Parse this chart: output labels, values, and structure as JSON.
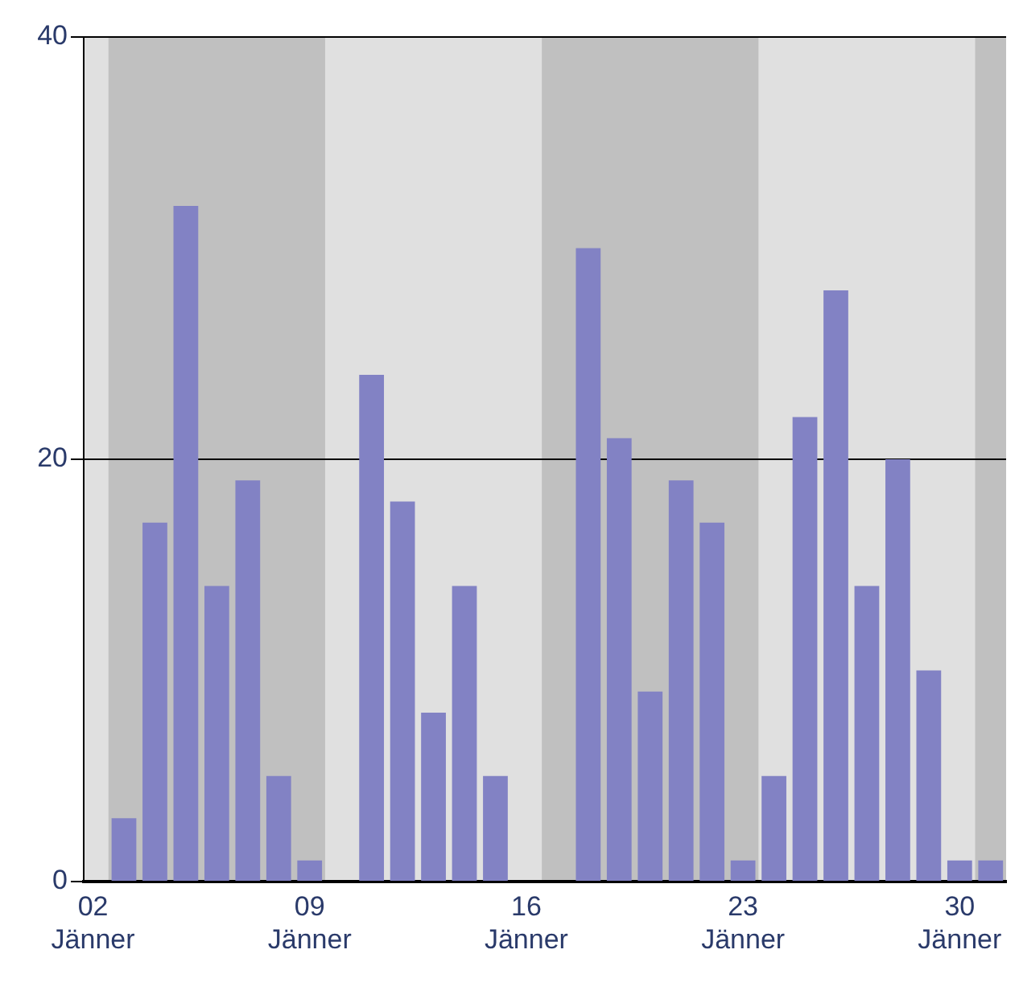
{
  "chart_data": {
    "type": "bar",
    "x": [
      2,
      3,
      4,
      5,
      6,
      7,
      8,
      9,
      10,
      11,
      12,
      13,
      14,
      15,
      16,
      17,
      18,
      19,
      20,
      21,
      22,
      23,
      24,
      25,
      26,
      27,
      28,
      29,
      30,
      31
    ],
    "values": [
      0,
      3,
      17,
      32,
      14,
      19,
      5,
      1,
      0,
      24,
      18,
      8,
      14,
      5,
      0,
      0,
      30,
      21,
      9,
      19,
      17,
      1,
      5,
      22,
      28,
      14,
      20,
      10,
      1,
      1
    ],
    "color": "#8282c4",
    "xlim": [
      1.7,
      31.5
    ],
    "xticks": [
      {
        "value": 2,
        "label": "02 Jänner"
      },
      {
        "value": 9,
        "label": "09 Jänner"
      },
      {
        "value": 16,
        "label": "16 Jänner"
      },
      {
        "value": 23,
        "label": "23 Jänner"
      },
      {
        "value": 30,
        "label": "30 Jänner"
      }
    ],
    "ylim": [
      0,
      40
    ],
    "yticks": [
      0,
      20,
      40
    ],
    "grid": "y",
    "bands": [
      {
        "axis": "x",
        "from": 2.5,
        "to": 9.5,
        "color": "#c0c0c0"
      },
      {
        "axis": "x",
        "from": 16.5,
        "to": 23.5,
        "color": "#c0c0c0"
      },
      {
        "axis": "x",
        "from": 30.5,
        "to": 31.5,
        "color": "#c0c0c0"
      }
    ]
  }
}
